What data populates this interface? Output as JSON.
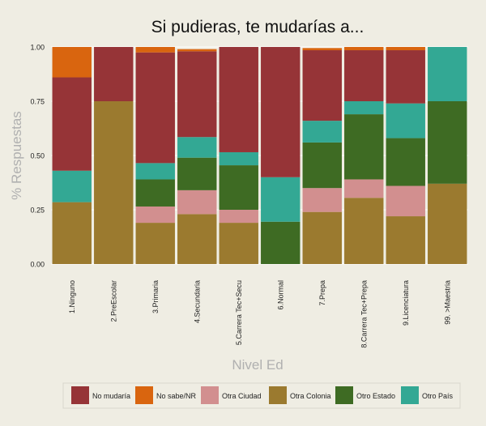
{
  "chart_data": {
    "type": "bar",
    "stacked": true,
    "title": "Si pudieras, te mudarías a...",
    "xlabel": "Nivel Ed",
    "ylabel": "% Respuestas",
    "ylim": [
      0,
      1
    ],
    "yticks": [
      "0.00",
      "0.25",
      "0.50",
      "0.75",
      "1.00"
    ],
    "grid": true,
    "legend_position": "bottom",
    "categories": [
      "1.Ninguno",
      "2.PreEscolar",
      "3.Primaria",
      "4.Secundaria",
      "5.Carrera Tec+Secu",
      "6.Normal",
      "7.Prepa",
      "8.Carrera Tec+Prepa",
      "9.Licenciatura",
      "99. >Maestria"
    ],
    "series": [
      {
        "name": "Otra Colonia",
        "color": "#9b7a2f",
        "values": [
          0.285,
          0.75,
          0.19,
          0.23,
          0.19,
          0.0,
          0.24,
          0.305,
          0.22,
          0.37
        ]
      },
      {
        "name": "Otro Estado",
        "color": "#3e6b23",
        "values": [
          0.0,
          0.0,
          0.0,
          0.0,
          0.0,
          0.195,
          0.0,
          0.0,
          0.0,
          0.0
        ]
      },
      {
        "name": "Otra Ciudad",
        "color": "#d28f8f",
        "values": [
          0.0,
          0.0,
          0.075,
          0.11,
          0.06,
          0.0,
          0.11,
          0.085,
          0.14,
          0.0
        ]
      },
      {
        "name": "Otro Estado",
        "color": "#3e6b23",
        "values": [
          0.0,
          0.0,
          0.125,
          0.15,
          0.205,
          0.0,
          0.21,
          0.3,
          0.22,
          0.38
        ]
      },
      {
        "name": "Otro País",
        "color": "#33a894",
        "values": [
          0.145,
          0.0,
          0.075,
          0.095,
          0.06,
          0.205,
          0.1,
          0.06,
          0.16,
          0.25
        ]
      },
      {
        "name": "No mudaría",
        "color": "#963437",
        "values": [
          0.43,
          0.25,
          0.51,
          0.395,
          0.485,
          0.6,
          0.325,
          0.235,
          0.245,
          0.0
        ]
      },
      {
        "name": "No sabe/NR",
        "color": "#d9650f",
        "values": [
          0.14,
          0.0,
          0.025,
          0.01,
          0.0,
          0.0,
          0.01,
          0.015,
          0.015,
          0.0
        ]
      }
    ],
    "legend": [
      {
        "name": "No mudaría",
        "color": "#963437"
      },
      {
        "name": "No sabe/NR",
        "color": "#d9650f"
      },
      {
        "name": "Otra Ciudad",
        "color": "#d28f8f"
      },
      {
        "name": "Otra Colonia",
        "color": "#9b7a2f"
      },
      {
        "name": "Otro Estado",
        "color": "#3e6b23"
      },
      {
        "name": "Otro País",
        "color": "#33a894"
      }
    ]
  }
}
